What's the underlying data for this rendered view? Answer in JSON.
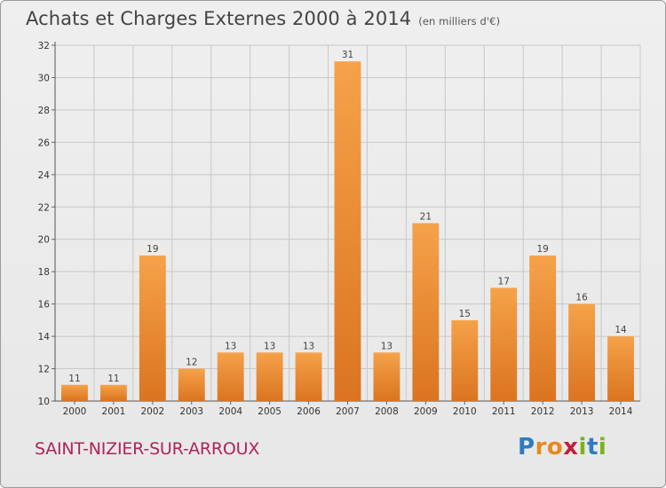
{
  "header": {
    "title": "Achats et Charges Externes 2000 à 2014",
    "subtitle": "(en milliers d'€)"
  },
  "footer": {
    "town": "SAINT-NIZIER-SUR-ARROUX",
    "logo": [
      "P",
      "r",
      "o",
      "x",
      "i",
      "t",
      "i"
    ],
    "logo_colors": [
      "#2e7bbf",
      "#e58a1f",
      "#e58a1f",
      "#c41e3a",
      "#7ab317",
      "#2e7bbf",
      "#7ab317"
    ]
  },
  "colors": {
    "bar_light": "#f5a24a",
    "bar_dark": "#db7420",
    "grid": "#c8c8c8"
  },
  "chart_data": {
    "type": "bar",
    "title": "Achats et Charges Externes 2000 à 2014",
    "subtitle": "(en milliers d'€)",
    "categories": [
      "2000",
      "2001",
      "2002",
      "2003",
      "2004",
      "2005",
      "2006",
      "2007",
      "2008",
      "2009",
      "2010",
      "2011",
      "2012",
      "2013",
      "2014"
    ],
    "values": [
      11,
      11,
      19,
      12,
      13,
      13,
      13,
      31,
      13,
      21,
      15,
      17,
      19,
      16,
      14
    ],
    "ylim": [
      10,
      32
    ],
    "yticks": [
      10,
      12,
      14,
      16,
      18,
      20,
      22,
      24,
      26,
      28,
      30,
      32
    ],
    "grid": true
  }
}
